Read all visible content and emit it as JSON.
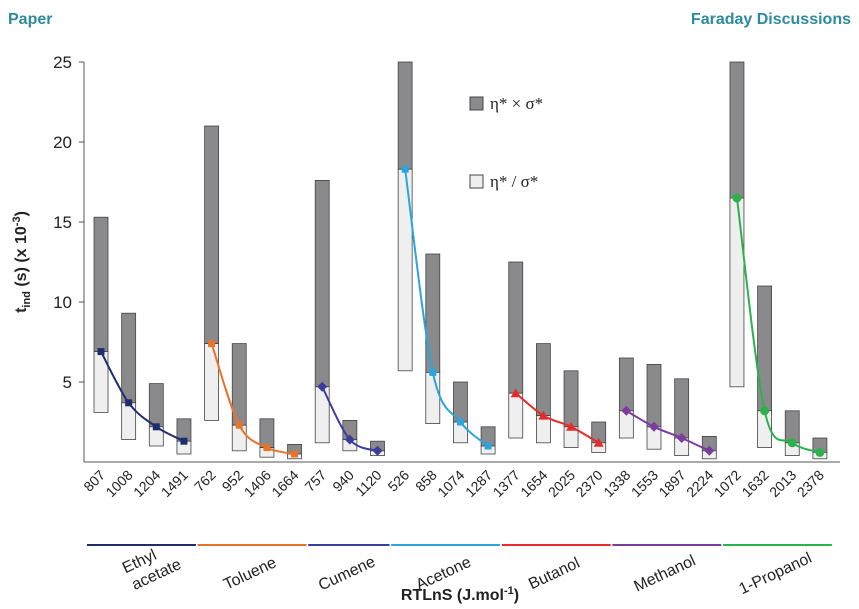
{
  "header": {
    "left": "Paper",
    "right": "Faraday Discussions"
  },
  "chart_data": {
    "type": "floating-bar",
    "y_label": {
      "main": "t",
      "sub": "ind",
      "rest": " (s) (x 10",
      "sup": "-3",
      "end": ")"
    },
    "x_label": {
      "main": "RTLnS (J.mol",
      "sup": "-1",
      "end": ")"
    },
    "ylim": [
      0,
      25
    ],
    "yticks": [
      5,
      10,
      15,
      20,
      25
    ],
    "legend_position": "top-center",
    "series": [
      {
        "name": "η* × σ*",
        "color": "#8a8a8c",
        "values": [
          15.3,
          9.3,
          4.9,
          2.7,
          21.0,
          7.4,
          2.7,
          1.1,
          17.6,
          2.6,
          1.3,
          25,
          13.0,
          5.0,
          2.2,
          12.5,
          7.4,
          5.7,
          2.5,
          6.5,
          6.1,
          5.2,
          1.6,
          25,
          11.0,
          3.2,
          1.5
        ]
      },
      {
        "name": "η* / σ*",
        "color": "#efefef",
        "values": [
          3.1,
          1.4,
          1.0,
          0.5,
          2.6,
          0.7,
          0.3,
          0.2,
          1.2,
          0.7,
          0.4,
          5.7,
          2.4,
          1.2,
          0.5,
          1.5,
          1.2,
          0.9,
          0.6,
          1.5,
          0.8,
          0.4,
          0.2,
          4.7,
          0.9,
          0.4,
          0.2
        ]
      }
    ],
    "groups": [
      {
        "label": [
          "Ethyl",
          "acetate"
        ],
        "color": "#1f2d6e",
        "marker": "square",
        "categories": [
          "807",
          "1008",
          "1204",
          "1491"
        ],
        "values": [
          6.9,
          3.7,
          2.2,
          1.3
        ]
      },
      {
        "label": [
          "Toluene"
        ],
        "color": "#e8742a",
        "marker": "square",
        "categories": [
          "762",
          "952",
          "1406",
          "1664"
        ],
        "values": [
          7.4,
          2.3,
          0.9,
          0.5
        ]
      },
      {
        "label": [
          "Cumene"
        ],
        "color": "#3b3d9c",
        "marker": "diamond",
        "categories": [
          "757",
          "940",
          "1120"
        ],
        "values": [
          4.7,
          1.4,
          0.7
        ]
      },
      {
        "label": [
          "Acetone"
        ],
        "color": "#2aa5de",
        "marker": "square",
        "categories": [
          "526",
          "858",
          "1074",
          "1287"
        ],
        "values": [
          18.3,
          5.6,
          2.5,
          1.0
        ]
      },
      {
        "label": [
          "Butanol"
        ],
        "color": "#e52b2b",
        "marker": "triangle",
        "categories": [
          "1377",
          "1654",
          "2025",
          "2370"
        ],
        "values": [
          4.3,
          2.9,
          2.2,
          1.2
        ]
      },
      {
        "label": [
          "Methanol"
        ],
        "color": "#7b3c9e",
        "marker": "diamond",
        "categories": [
          "1338",
          "1553",
          "1897",
          "2224"
        ],
        "values": [
          3.2,
          2.2,
          1.5,
          0.7
        ]
      },
      {
        "label": [
          "1-Propanol"
        ],
        "color": "#2bb24c",
        "marker": "circle",
        "categories": [
          "1072",
          "1632",
          "2013",
          "2378"
        ],
        "values": [
          16.5,
          3.2,
          1.2,
          0.6
        ]
      }
    ]
  }
}
